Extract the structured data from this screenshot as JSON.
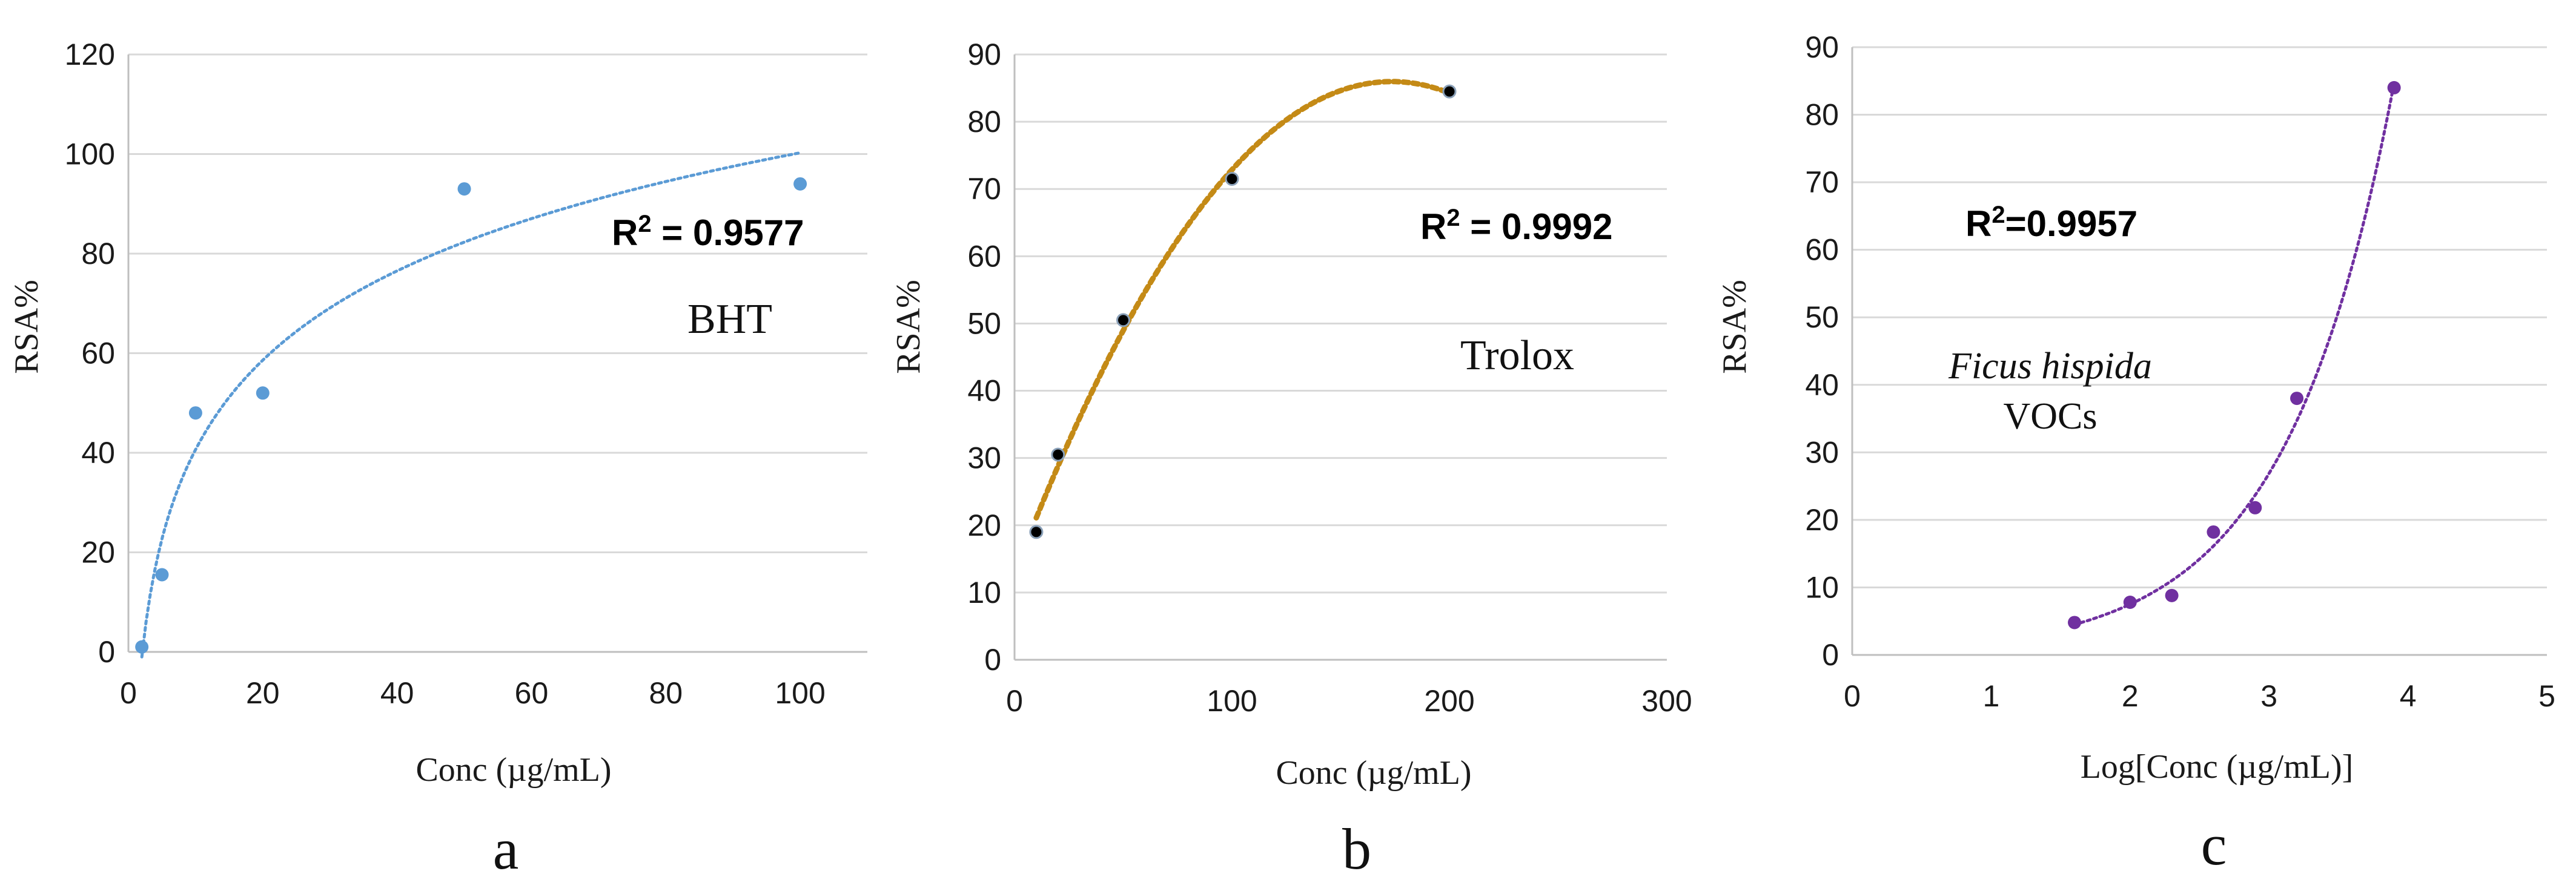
{
  "chart_data": [
    {
      "type": "scatter",
      "panel": "a",
      "xlabel": "Conc (µg/mL)",
      "ylabel": "RSA%",
      "xlim": [
        0,
        110
      ],
      "ylim": [
        0,
        120
      ],
      "xticks": [
        0,
        20,
        40,
        60,
        80,
        100
      ],
      "yticks": [
        0,
        20,
        40,
        60,
        80,
        100,
        120
      ],
      "grid": "horizontal",
      "series": [
        {
          "name": "BHT",
          "color": "#5b9bd5",
          "x": [
            2,
            5,
            10,
            20,
            50,
            100
          ],
          "y": [
            1,
            15.5,
            48,
            52,
            93,
            94
          ]
        }
      ],
      "trendline": {
        "type": "logarithmic",
        "style": "dotted",
        "color": "#5b9bd5",
        "x_range": [
          2,
          100
        ]
      },
      "annotation": {
        "r2_text": "R",
        "r2_sup": "2",
        "r2_value": " = 0.9577"
      }
    },
    {
      "type": "scatter",
      "panel": "b",
      "xlabel": "Conc (µg/mL)",
      "ylabel": "RSA%",
      "xlim": [
        0,
        300
      ],
      "ylim": [
        0,
        90
      ],
      "xticks": [
        0,
        100,
        200,
        300
      ],
      "yticks": [
        0,
        10,
        20,
        30,
        40,
        50,
        60,
        70,
        80,
        90
      ],
      "grid": "horizontal",
      "series": [
        {
          "name": "Trolox",
          "color": "#000000",
          "x": [
            10,
            20,
            50,
            100,
            200
          ],
          "y": [
            19,
            30.5,
            50.5,
            71.5,
            84.5
          ]
        }
      ],
      "trendline": {
        "type": "polynomial",
        "style": "dotted",
        "color": "#c48a16",
        "x_range": [
          10,
          200
        ]
      },
      "annotation": {
        "r2_text": "R",
        "r2_sup": "2",
        "r2_value": " = 0.9992"
      }
    },
    {
      "type": "scatter",
      "panel": "c",
      "xlabel": "Log[Conc (µg/mL)]",
      "ylabel": "RSA%",
      "xlim": [
        0,
        5
      ],
      "ylim": [
        0,
        90
      ],
      "xticks": [
        0,
        1,
        2,
        3,
        4,
        5
      ],
      "yticks": [
        0,
        10,
        20,
        30,
        40,
        50,
        60,
        70,
        80,
        90
      ],
      "grid": "horizontal",
      "series": [
        {
          "name_italic": "Ficus hispida",
          "name_plain": "VOCs",
          "color": "#7030a0",
          "x": [
            1.6,
            2.0,
            2.3,
            2.6,
            2.9,
            3.2,
            3.9
          ],
          "y": [
            4.8,
            7.8,
            8.8,
            18.2,
            21.8,
            38,
            84
          ]
        }
      ],
      "trendline": {
        "type": "exponential",
        "style": "dotted",
        "color": "#7030a0",
        "x_range": [
          1.6,
          3.9
        ]
      },
      "annotation": {
        "r2_text": "R",
        "r2_sup": "2",
        "r2_value": "=0.9957"
      }
    }
  ]
}
